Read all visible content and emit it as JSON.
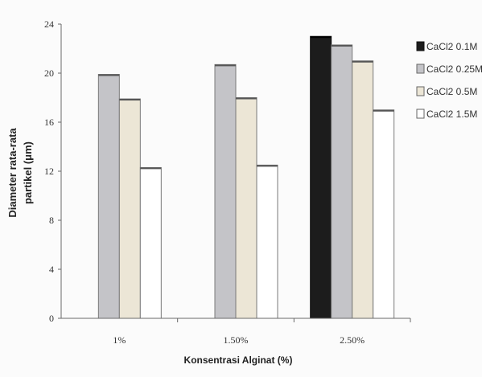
{
  "chart_data": {
    "type": "bar",
    "title": "",
    "xlabel": "Konsentrasi Alginat (%)",
    "ylabel_lines": [
      "Diameter rata-rata",
      "partikel (μm)"
    ],
    "categories": [
      "1%",
      "1.50%",
      "2.50%"
    ],
    "ylim": [
      0,
      24
    ],
    "yticks": [
      "0",
      "4",
      "8",
      "12",
      "16",
      "20",
      "24"
    ],
    "grid": false,
    "legend_position": "right",
    "series": [
      {
        "name": "CaCl2 0.1M",
        "values": [
          0,
          0,
          23.0
        ],
        "color": "#1c1c1c"
      },
      {
        "name": "CaCl2 0.25M",
        "values": [
          19.9,
          20.7,
          22.3
        ],
        "color": "#c4c4c8"
      },
      {
        "name": "CaCl2 0.5M",
        "values": [
          17.9,
          18.0,
          21.0
        ],
        "color": "#ece6d6"
      },
      {
        "name": "CaCl2 1.5M",
        "values": [
          12.3,
          12.5,
          17.0
        ],
        "color": "#ffffff"
      }
    ]
  }
}
